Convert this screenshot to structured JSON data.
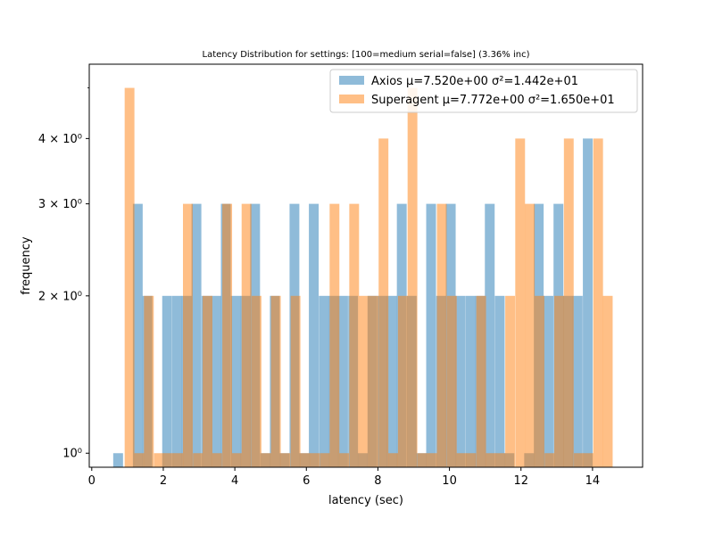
{
  "chart_data": {
    "type": "histogram",
    "title": "Latency Distribution for settings: [100=medium serial=false] (3.36% inc)",
    "xlabel": "latency (sec)",
    "ylabel": "frequency",
    "xlim": [
      -0.07,
      15.4
    ],
    "ylim": [
      0.94,
      5.55
    ],
    "yscale": "log",
    "xticks": [
      0,
      2,
      4,
      6,
      8,
      10,
      12,
      14
    ],
    "xtick_labels": [
      "0",
      "2",
      "4",
      "6",
      "8",
      "10",
      "12",
      "14"
    ],
    "yticks": [
      1,
      2,
      3,
      4
    ],
    "ytick_labels": [
      "10⁰",
      "2 × 10⁰",
      "3 × 10⁰",
      "4 × 10⁰"
    ],
    "grid": false,
    "legend_position": "top-right",
    "series": [
      {
        "name": "Axios μ=7.520e+00 σ²=1.442e+01",
        "color": "#1f77b4",
        "alpha": 0.5,
        "bin_width": 0.274,
        "bins": [
          [
            0.6,
            1
          ],
          [
            1.15,
            3
          ],
          [
            1.42,
            2
          ],
          [
            1.97,
            2
          ],
          [
            2.25,
            2
          ],
          [
            2.52,
            2
          ],
          [
            2.79,
            3
          ],
          [
            3.07,
            2
          ],
          [
            3.34,
            2
          ],
          [
            3.61,
            3
          ],
          [
            3.89,
            2
          ],
          [
            4.16,
            2
          ],
          [
            4.43,
            3
          ],
          [
            4.71,
            1
          ],
          [
            4.98,
            2
          ],
          [
            5.25,
            1
          ],
          [
            5.53,
            3
          ],
          [
            5.8,
            1
          ],
          [
            6.07,
            3
          ],
          [
            6.35,
            2
          ],
          [
            6.62,
            2
          ],
          [
            6.89,
            2
          ],
          [
            7.17,
            2
          ],
          [
            7.44,
            1
          ],
          [
            7.71,
            2
          ],
          [
            7.99,
            2
          ],
          [
            8.26,
            2
          ],
          [
            8.53,
            3
          ],
          [
            8.81,
            2
          ],
          [
            9.08,
            1
          ],
          [
            9.35,
            3
          ],
          [
            9.63,
            2
          ],
          [
            9.9,
            3
          ],
          [
            10.17,
            2
          ],
          [
            10.45,
            2
          ],
          [
            10.72,
            2
          ],
          [
            10.99,
            3
          ],
          [
            11.27,
            2
          ],
          [
            11.54,
            1
          ],
          [
            12.09,
            1
          ],
          [
            12.36,
            3
          ],
          [
            12.63,
            2
          ],
          [
            12.91,
            3
          ],
          [
            13.18,
            2
          ],
          [
            13.45,
            2
          ],
          [
            13.73,
            4
          ]
        ]
      },
      {
        "name": "Superagent μ=7.772e+00 σ²=1.650e+01",
        "color": "#ff7f0e",
        "alpha": 0.5,
        "bin_width": 0.273,
        "bins": [
          [
            0.92,
            5
          ],
          [
            1.19,
            1
          ],
          [
            1.46,
            2
          ],
          [
            1.74,
            1
          ],
          [
            2.01,
            1
          ],
          [
            2.28,
            1
          ],
          [
            2.55,
            3
          ],
          [
            2.83,
            1
          ],
          [
            3.1,
            2
          ],
          [
            3.37,
            1
          ],
          [
            3.65,
            3
          ],
          [
            3.92,
            1
          ],
          [
            4.19,
            3
          ],
          [
            4.47,
            2
          ],
          [
            4.74,
            1
          ],
          [
            5.01,
            2
          ],
          [
            5.28,
            1
          ],
          [
            5.56,
            2
          ],
          [
            5.83,
            1
          ],
          [
            6.1,
            1
          ],
          [
            6.38,
            1
          ],
          [
            6.65,
            3
          ],
          [
            6.92,
            1
          ],
          [
            7.2,
            3
          ],
          [
            7.47,
            2
          ],
          [
            7.74,
            2
          ],
          [
            8.02,
            4
          ],
          [
            8.29,
            1
          ],
          [
            8.56,
            2
          ],
          [
            8.83,
            5
          ],
          [
            9.11,
            1
          ],
          [
            9.38,
            1
          ],
          [
            9.65,
            3
          ],
          [
            9.93,
            2
          ],
          [
            10.2,
            1
          ],
          [
            10.47,
            1
          ],
          [
            10.75,
            2
          ],
          [
            11.02,
            1
          ],
          [
            11.29,
            1
          ],
          [
            11.56,
            2
          ],
          [
            11.84,
            4
          ],
          [
            12.11,
            3
          ],
          [
            12.38,
            2
          ],
          [
            12.66,
            1
          ],
          [
            12.93,
            2
          ],
          [
            13.2,
            4
          ],
          [
            13.48,
            1
          ],
          [
            13.75,
            1
          ],
          [
            14.02,
            4
          ],
          [
            14.29,
            2
          ]
        ]
      }
    ]
  }
}
